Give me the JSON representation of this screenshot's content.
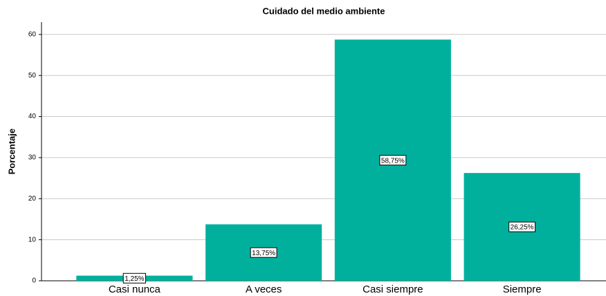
{
  "chart_data": {
    "type": "bar",
    "title": "Cuidado del medio ambiente",
    "y_label": "Porcentaje",
    "categories": [
      "Casi nunca",
      "A veces",
      "Casi siempre",
      "Siempre"
    ],
    "values": [
      1.25,
      13.75,
      58.75,
      26.25
    ],
    "value_labels": [
      "1,25%",
      "13,75%",
      "58,75%",
      "26,25%"
    ],
    "color": "#00b09d",
    "ylim": [
      0,
      63
    ],
    "yticks": [
      0,
      10,
      20,
      30,
      40,
      50,
      60
    ],
    "grid": true
  }
}
